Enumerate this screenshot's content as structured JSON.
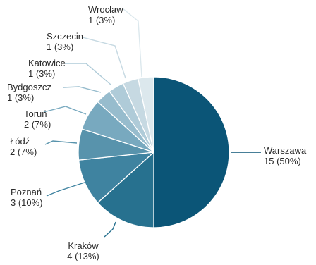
{
  "chart_data": {
    "type": "pie",
    "title": "",
    "start_angle_deg": 0,
    "direction": "clockwise",
    "slices": [
      {
        "name": "Warszawa",
        "value": 15,
        "value_label": "15 (50%)",
        "color": "#0b5577",
        "label_side": "right"
      },
      {
        "name": "Kraków",
        "value": 4,
        "value_label": "4 (13%)",
        "color": "#27718f",
        "label_side": "left"
      },
      {
        "name": "Poznań",
        "value": 3,
        "value_label": "3 (10%)",
        "color": "#3f83a0",
        "label_side": "left"
      },
      {
        "name": "Łódź",
        "value": 2,
        "value_label": "2 (7%)",
        "color": "#5893ac",
        "label_side": "left"
      },
      {
        "name": "Toruń",
        "value": 2,
        "value_label": "2 (7%)",
        "color": "#78a9bf",
        "label_side": "left"
      },
      {
        "name": "Bydgoszcz",
        "value": 1,
        "value_label": "1 (3%)",
        "color": "#97bccd",
        "label_side": "left"
      },
      {
        "name": "Katowice",
        "value": 1,
        "value_label": "1 (3%)",
        "color": "#afcbd8",
        "label_side": "left"
      },
      {
        "name": "Szczecin",
        "value": 1,
        "value_label": "1 (3%)",
        "color": "#c6d9e2",
        "label_side": "left"
      },
      {
        "name": "Wrocław",
        "value": 1,
        "value_label": "1 (3%)",
        "color": "#dce8ed",
        "label_side": "left"
      }
    ]
  }
}
